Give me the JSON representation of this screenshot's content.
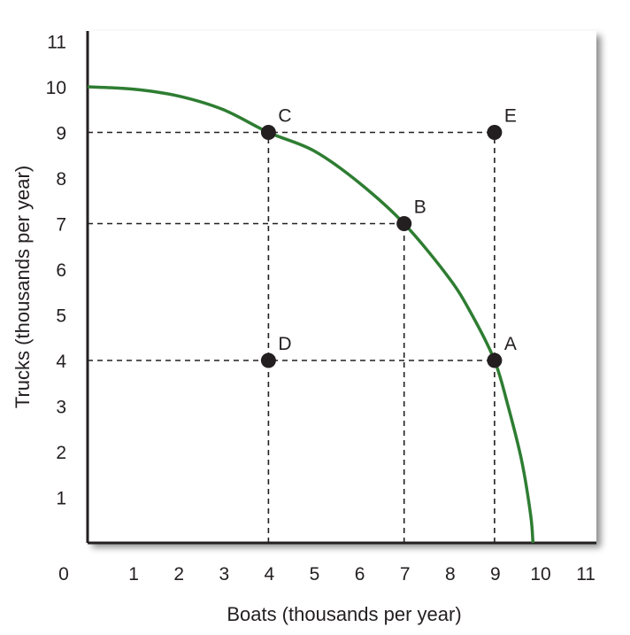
{
  "chart_data": {
    "type": "line",
    "title": "",
    "xlabel": "Boats (thousands per year)",
    "ylabel": "Trucks (thousands per year)",
    "xlim": [
      0,
      11
    ],
    "ylim": [
      0,
      11
    ],
    "x_ticks": [
      1,
      2,
      3,
      4,
      5,
      6,
      7,
      8,
      9,
      10,
      11
    ],
    "y_ticks": [
      1,
      2,
      3,
      4,
      5,
      6,
      7,
      8,
      9,
      10,
      11
    ],
    "origin_label": "0",
    "grid": false,
    "curve": {
      "color": "#2e7d32",
      "x": [
        0,
        1,
        2,
        3,
        4,
        5,
        6,
        7,
        8,
        8.5,
        9,
        9.3,
        9.6,
        9.8,
        9.85
      ],
      "y": [
        10,
        9.95,
        9.8,
        9.5,
        9,
        8.6,
        7.9,
        7,
        5.8,
        5,
        4,
        3,
        1.8,
        0.6,
        0
      ]
    },
    "points": [
      {
        "label": "A",
        "x": 9,
        "y": 4
      },
      {
        "label": "B",
        "x": 7,
        "y": 7
      },
      {
        "label": "C",
        "x": 4,
        "y": 9
      },
      {
        "label": "D",
        "x": 4,
        "y": 4
      },
      {
        "label": "E",
        "x": 9,
        "y": 9
      }
    ],
    "dashed_guides": [
      {
        "axis": "h",
        "y": 9,
        "x_to": 9
      },
      {
        "axis": "h",
        "y": 7,
        "x_to": 7
      },
      {
        "axis": "h",
        "y": 4,
        "x_to": 9
      },
      {
        "axis": "v",
        "x": 4,
        "y_to": 9
      },
      {
        "axis": "v",
        "x": 7,
        "y_to": 7
      },
      {
        "axis": "v",
        "x": 9,
        "y_to": 9
      }
    ]
  }
}
